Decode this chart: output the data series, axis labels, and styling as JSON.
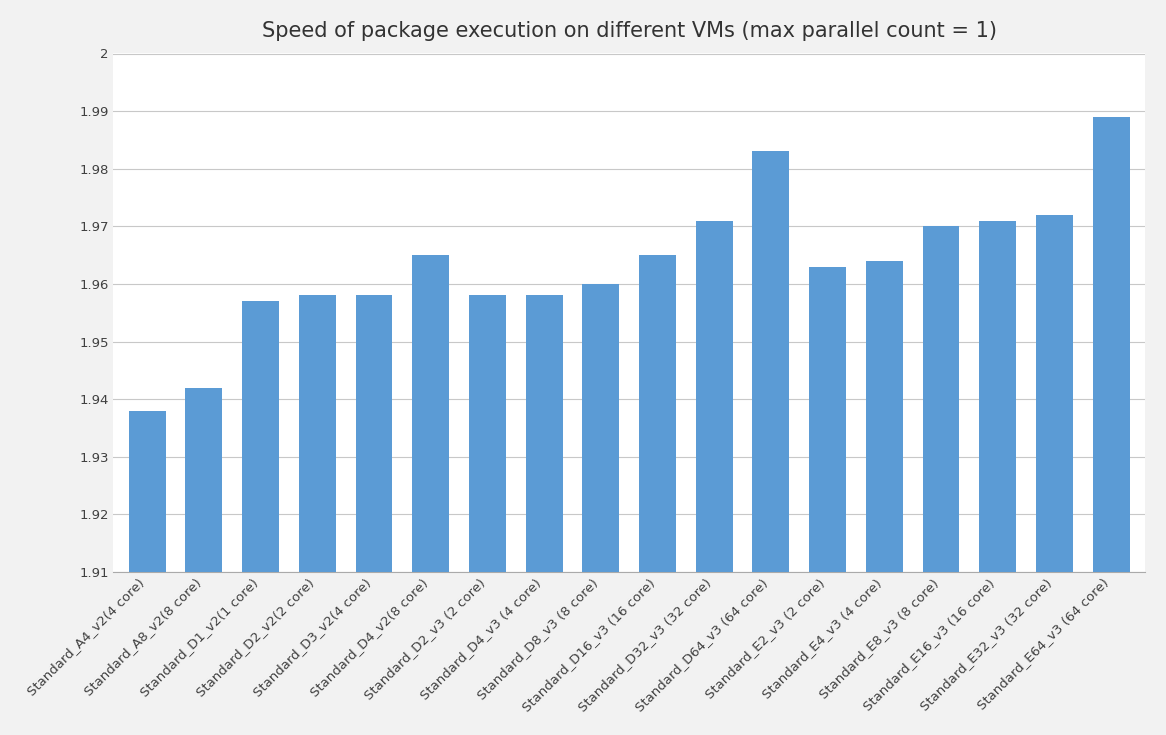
{
  "title": "Speed of package execution on different VMs (max parallel count = 1)",
  "categories": [
    "Standard_A4_v2(4 core)",
    "Standard_A8_v2(8 core)",
    "Standard_D1_v2(1 core)",
    "Standard_D2_v2(2 core)",
    "Standard_D3_v2(4 core)",
    "Standard_D4_v2(8 core)",
    "Standard_D2_v3 (2 core)",
    "Standard_D4_v3 (4 core)",
    "Standard_D8_v3 (8 core)",
    "Standard_D16_v3 (16 core)",
    "Standard_D32_v3 (32 core)",
    "Standard_D64_v3 (64 core)",
    "Standard_E2_v3 (2 core)",
    "Standard_E4_v3 (4 core)",
    "Standard_E8_v3 (8 core)",
    "Standard_E16_v3 (16 core)",
    "Standard_E32_v3 (32 core)",
    "Standard_E64_v3 (64 core)"
  ],
  "values": [
    1.938,
    1.942,
    1.957,
    1.958,
    1.958,
    1.965,
    1.958,
    1.958,
    1.96,
    1.965,
    1.971,
    1.983,
    1.963,
    1.964,
    1.97,
    1.971,
    1.972,
    1.989
  ],
  "bar_color": "#5b9bd5",
  "ymin": 1.91,
  "ymax": 2.0,
  "yticks": [
    2.0,
    1.99,
    1.98,
    1.97,
    1.96,
    1.95,
    1.94,
    1.93,
    1.92,
    1.91
  ],
  "background_color": "#f2f2f2",
  "plot_bg_color": "#ffffff",
  "grid_color": "#c8c8c8",
  "title_fontsize": 15,
  "tick_fontsize": 9.5
}
